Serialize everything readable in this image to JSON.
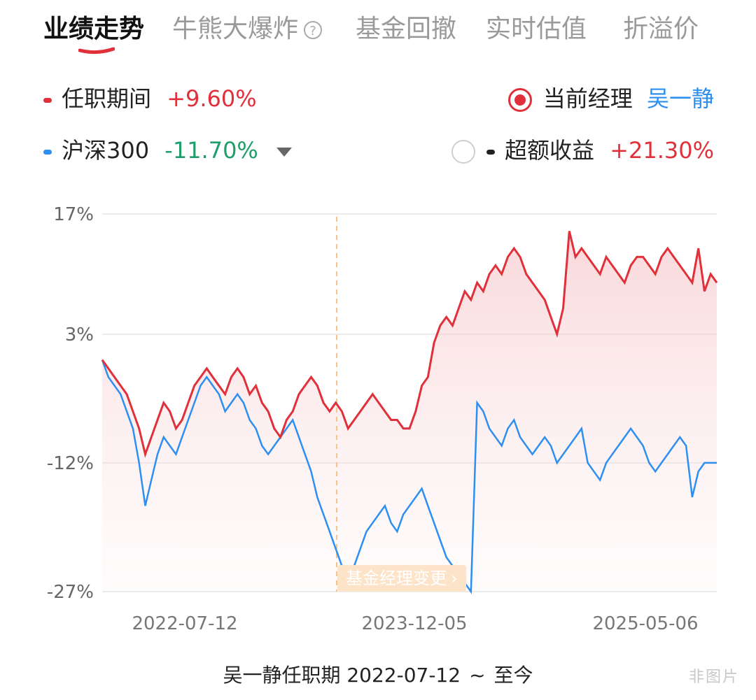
{
  "tabs": [
    {
      "label": "业绩走势",
      "active": true
    },
    {
      "label": "牛熊大爆炸",
      "help": "?"
    },
    {
      "label": "基金回撤"
    },
    {
      "label": "实时估值"
    },
    {
      "label": "折溢价"
    }
  ],
  "legend": {
    "tenure": {
      "label": "任职期间",
      "value": "+9.60%"
    },
    "index": {
      "label": "沪深300",
      "value": "-11.70%"
    },
    "current_manager": {
      "label": "当前经理",
      "name": "吴一静"
    },
    "excess": {
      "label": "超额收益",
      "value": "+21.30%"
    }
  },
  "colors": {
    "red": "#e0303a",
    "blue": "#2d8ff0",
    "green": "#1f9d6b"
  },
  "chart_data": {
    "type": "line",
    "y_ticks": [
      "17%",
      "3%",
      "-12%",
      "-27%"
    ],
    "x_labels": [
      "2022-07-12",
      "2023-12-05",
      "2025-05-06"
    ],
    "ylim": [
      -27,
      17
    ],
    "series": [
      {
        "name": "任职期间",
        "color": "#e0303a",
        "values": [
          0,
          -1,
          -2,
          -3,
          -4,
          -6,
          -8,
          -11,
          -9,
          -7,
          -5,
          -6,
          -8,
          -7,
          -5,
          -3,
          -2,
          -1,
          -2,
          -3,
          -4,
          -2,
          -1,
          -2,
          -4,
          -3,
          -5,
          -6,
          -8,
          -9,
          -7,
          -6,
          -4,
          -3,
          -2,
          -3,
          -5,
          -6,
          -5,
          -6,
          -8,
          -7,
          -6,
          -5,
          -4,
          -5,
          -6,
          -7,
          -7,
          -8,
          -8,
          -6,
          -3,
          -2,
          2,
          4,
          5,
          4,
          6,
          8,
          7,
          9,
          8,
          10,
          11,
          10,
          12,
          13,
          12,
          10,
          9,
          8,
          7,
          5,
          3,
          6,
          15,
          12,
          13,
          12,
          11,
          10,
          12,
          11,
          10,
          9,
          11,
          12,
          12,
          11,
          10,
          12,
          13,
          12,
          11,
          10,
          9,
          13,
          8,
          10,
          9
        ]
      },
      {
        "name": "沪深300",
        "color": "#2d8ff0",
        "values": [
          0,
          -2,
          -3,
          -4,
          -6,
          -8,
          -12,
          -17,
          -14,
          -11,
          -9,
          -10,
          -11,
          -9,
          -7,
          -5,
          -3,
          -2,
          -3,
          -4,
          -6,
          -5,
          -4,
          -5,
          -7,
          -8,
          -10,
          -11,
          -10,
          -9,
          -8,
          -7,
          -9,
          -11,
          -13,
          -16,
          -18,
          -20,
          -22,
          -24,
          -25,
          -24,
          -22,
          -20,
          -19,
          -18,
          -17,
          -19,
          -20,
          -18,
          -17,
          -16,
          -15,
          -17,
          -19,
          -21,
          -23,
          -24,
          -25,
          -26,
          -27,
          -5,
          -6,
          -8,
          -9,
          -10,
          -8,
          -7,
          -9,
          -10,
          -11,
          -10,
          -9,
          -10,
          -12,
          -11,
          -10,
          -9,
          -8,
          -12,
          -13,
          -14,
          -12,
          -11,
          -10,
          -9,
          -8,
          -9,
          -10,
          -12,
          -13,
          -12,
          -11,
          -10,
          -9,
          -10,
          -16,
          -13,
          -12,
          -12,
          -12
        ]
      },
      {
        "name": "超额收益",
        "color": "#222222",
        "values": []
      }
    ],
    "annotations": {
      "manager_change": "基金经理变更",
      "chevron": "›"
    }
  },
  "footer": {
    "text": "吴一静任职期 2022-07-12",
    "sep": "~",
    "end": "至今"
  },
  "watermark": "非图片"
}
